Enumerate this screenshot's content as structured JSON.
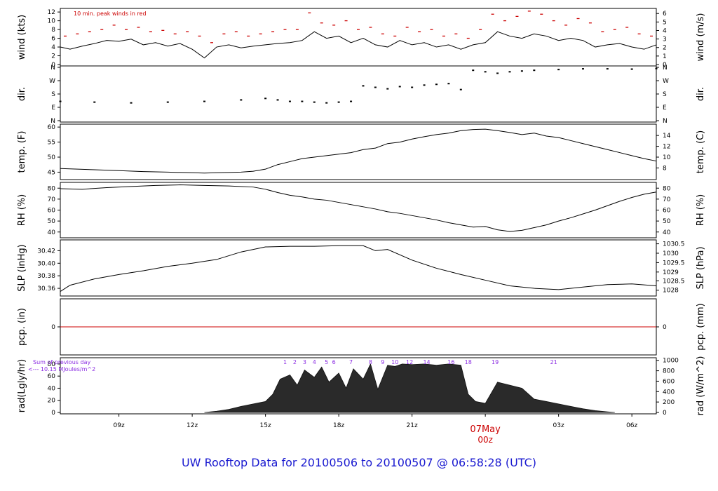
{
  "footer": {
    "title": "UW Rooftop Data for 20100506  to  20100507 @ 06:58:28  (UTC)"
  },
  "colors": {
    "axis": "#000000",
    "line": "#000000",
    "peak": "#cc0000",
    "precip": "#cc0000",
    "annot": "#8a2be2",
    "date": "#cc0000",
    "title": "#1a1ad0"
  },
  "chart_data": {
    "type": "line",
    "x_axis": {
      "unit": "hours UTC since 2010-05-06 06:00",
      "range": [
        6.6,
        31.0
      ],
      "ticks": [
        {
          "x": 9,
          "label": "09z"
        },
        {
          "x": 12,
          "label": "12z"
        },
        {
          "x": 15,
          "label": "15z"
        },
        {
          "x": 18,
          "label": "18z"
        },
        {
          "x": 21,
          "label": "21z"
        },
        {
          "x": 24,
          "label": "00z"
        },
        {
          "x": 27,
          "label": "03z"
        },
        {
          "x": 30,
          "label": "06z"
        }
      ],
      "date_label": "07May"
    },
    "panels": [
      {
        "id": "wind",
        "ylabel_left": "wind (kts)",
        "ylabel_right": "wind (m/s)",
        "ylim": [
          0,
          12.5
        ],
        "yticks_left": [
          "0",
          "2",
          "4",
          "6",
          "8",
          "10",
          "12"
        ],
        "yticks_left_values": [
          0,
          2,
          4,
          6,
          8,
          10,
          12
        ],
        "yticks_right": [
          "0",
          "1",
          "2",
          "3",
          "4",
          "5",
          "6"
        ],
        "yticks_right_values": [
          0,
          1.944,
          3.888,
          5.832,
          7.776,
          9.72,
          11.664
        ],
        "annotation": "10 min. peak winds in red",
        "series": [
          {
            "x": [
              6.6,
              7.0,
              7.5,
              8.0,
              8.5,
              9.0,
              9.5,
              10.0,
              10.5,
              11.0,
              11.5,
              12.0,
              12.5,
              13.0,
              13.5,
              14.0,
              14.5,
              15.0,
              15.5,
              16.0,
              16.5,
              17.0,
              17.5,
              18.0,
              18.5,
              19.0,
              19.5,
              20.0,
              20.5,
              21.0,
              21.5,
              22.0,
              22.5,
              23.0,
              23.5,
              24.0,
              24.5,
              25.0,
              25.5,
              26.0,
              26.5,
              27.0,
              27.5,
              28.0,
              28.5,
              29.0,
              29.5,
              30.0,
              30.5,
              31.0
            ],
            "y": [
              4.0,
              3.5,
              4.2,
              4.8,
              5.5,
              5.3,
              5.8,
              4.5,
              5.0,
              4.2,
              4.8,
              3.5,
              1.5,
              4.0,
              4.5,
              3.8,
              4.2,
              4.5,
              4.8,
              5.0,
              5.5,
              7.5,
              6.0,
              6.5,
              5.0,
              6.0,
              4.5,
              4.0,
              5.5,
              4.5,
              5.0,
              4.0,
              4.5,
              3.5,
              4.5,
              5.0,
              7.5,
              6.5,
              6.0,
              7.0,
              6.5,
              5.5,
              6.0,
              5.5,
              4.0,
              4.5,
              4.8,
              4.0,
              3.5,
              4.5
            ]
          },
          {
            "name": "10 min. peak winds in red",
            "x": [
              6.8,
              7.3,
              7.8,
              8.3,
              8.8,
              9.3,
              9.8,
              10.3,
              10.8,
              11.3,
              11.8,
              12.3,
              12.8,
              13.3,
              13.8,
              14.3,
              14.8,
              15.3,
              15.8,
              16.3,
              16.8,
              17.3,
              17.8,
              18.3,
              18.8,
              19.3,
              19.8,
              20.3,
              20.8,
              21.3,
              21.8,
              22.3,
              22.8,
              23.3,
              23.8,
              24.3,
              24.8,
              25.3,
              25.8,
              26.3,
              26.8,
              27.3,
              27.8,
              28.3,
              28.8,
              29.3,
              29.8,
              30.3,
              30.8
            ],
            "y": [
              6.5,
              7.0,
              7.5,
              8.0,
              9.0,
              8.0,
              8.5,
              7.5,
              7.8,
              7.0,
              7.5,
              6.5,
              5.0,
              7.0,
              7.5,
              6.5,
              7.0,
              7.5,
              8.0,
              8.0,
              11.8,
              9.5,
              9.0,
              10.0,
              8.0,
              8.5,
              7.0,
              6.5,
              8.5,
              7.5,
              8.0,
              6.5,
              7.0,
              6.0,
              8.0,
              11.5,
              10.0,
              11.0,
              12.2,
              11.5,
              10.0,
              9.0,
              10.5,
              9.5,
              7.5,
              8.0,
              8.5,
              7.0,
              6.5
            ]
          }
        ]
      },
      {
        "id": "dir",
        "ylabel_left": "dir.",
        "ylabel_right": "dir.",
        "ylim": [
          0,
          360
        ],
        "yticks_left": [
          "N",
          "E",
          "S",
          "W",
          "N"
        ],
        "yticks_left_values": [
          0,
          90,
          180,
          270,
          360
        ],
        "yticks_right": [
          "N",
          "E",
          "S",
          "W",
          "N"
        ],
        "yticks_right_values": [
          0,
          90,
          180,
          270,
          360
        ],
        "series": [
          {
            "x": [
              6.6,
              8.0,
              9.5,
              11.0,
              12.5,
              14.0,
              15.0,
              15.5,
              16.0,
              16.5,
              17.0,
              17.5,
              18.0,
              18.5,
              19.0,
              19.5,
              20.0,
              20.5,
              21.0,
              21.5,
              22.0,
              22.5,
              23.0,
              23.5,
              24.0,
              24.5,
              25.0,
              25.5,
              26.0,
              27.0,
              28.0,
              29.0,
              30.0,
              31.0
            ],
            "y": [
              130,
              125,
              120,
              125,
              130,
              140,
              150,
              140,
              130,
              130,
              125,
              120,
              125,
              130,
              235,
              225,
              215,
              230,
              225,
              240,
              245,
              250,
              210,
              340,
              330,
              320,
              330,
              335,
              340,
              345,
              350,
              350,
              348,
              352
            ]
          }
        ]
      },
      {
        "id": "temp",
        "ylabel_left": "temp. (F)",
        "ylabel_right": "temp. (C)",
        "ylim": [
          43,
          60.5
        ],
        "yticks_left": [
          "45",
          "50",
          "55",
          "60"
        ],
        "yticks_left_values": [
          45,
          50,
          55,
          60
        ],
        "yticks_right": [
          "8",
          "10",
          "12",
          "14"
        ],
        "yticks_right_values": [
          46.4,
          50,
          53.6,
          57.2
        ],
        "series": [
          {
            "x": [
              6.6,
              8.0,
              9.0,
              10.0,
              11.0,
              12.0,
              12.5,
              13.0,
              13.5,
              14.0,
              14.5,
              15.0,
              15.5,
              16.0,
              16.5,
              17.0,
              17.5,
              18.0,
              18.5,
              19.0,
              19.5,
              20.0,
              20.5,
              21.0,
              21.5,
              22.0,
              22.5,
              23.0,
              23.5,
              24.0,
              24.5,
              25.0,
              25.5,
              26.0,
              26.5,
              27.0,
              27.5,
              28.0,
              28.5,
              29.0,
              29.5,
              30.0,
              30.5,
              31.0
            ],
            "y": [
              46.2,
              45.8,
              45.5,
              45.2,
              45.0,
              44.8,
              44.7,
              44.8,
              44.9,
              45.0,
              45.3,
              46.0,
              47.5,
              48.5,
              49.5,
              50.0,
              50.5,
              51.0,
              51.5,
              52.5,
              53.0,
              54.5,
              55.0,
              56.0,
              56.8,
              57.5,
              58.0,
              58.8,
              59.2,
              59.3,
              58.8,
              58.2,
              57.5,
              58.0,
              57.0,
              56.5,
              55.5,
              54.5,
              53.5,
              52.5,
              51.5,
              50.5,
              49.5,
              48.7
            ]
          }
        ]
      },
      {
        "id": "rh",
        "ylabel_left": "RH (%)",
        "ylabel_right": "RH (%)",
        "ylim": [
          36,
          84
        ],
        "yticks_left": [
          "40",
          "50",
          "60",
          "70",
          "80"
        ],
        "yticks_left_values": [
          40,
          50,
          60,
          70,
          80
        ],
        "yticks_right": [
          "40",
          "50",
          "60",
          "70",
          "80"
        ],
        "yticks_right_values": [
          40,
          50,
          60,
          70,
          80
        ],
        "series": [
          {
            "x": [
              6.6,
              7.5,
              8.5,
              9.5,
              10.5,
              11.5,
              12.5,
              13.5,
              14.5,
              15.0,
              15.5,
              16.0,
              16.5,
              17.0,
              17.5,
              18.0,
              18.5,
              19.0,
              19.5,
              20.0,
              20.5,
              21.0,
              21.5,
              22.0,
              22.5,
              23.0,
              23.5,
              24.0,
              24.5,
              25.0,
              25.5,
              26.0,
              26.5,
              27.0,
              27.5,
              28.0,
              28.5,
              29.0,
              29.5,
              30.0,
              30.5,
              31.0
            ],
            "y": [
              79.5,
              79.0,
              80.5,
              81.5,
              82.5,
              83.0,
              82.5,
              82.0,
              81.0,
              79.0,
              76.0,
              73.5,
              72.0,
              70.0,
              69.0,
              67.0,
              65.0,
              63.0,
              61.0,
              58.5,
              57.0,
              55.0,
              53.0,
              51.0,
              48.5,
              46.5,
              44.5,
              45.0,
              42.0,
              40.5,
              41.5,
              44.0,
              46.5,
              50.0,
              53.0,
              56.5,
              60.0,
              64.0,
              68.0,
              71.5,
              74.5,
              76.5
            ]
          }
        ]
      },
      {
        "id": "slp",
        "ylabel_left": "SLP (inHg)",
        "ylabel_right": "SLP (hPa)",
        "ylim": [
          30.35,
          30.435
        ],
        "yticks_left": [
          "30.36",
          "30.38",
          "30.40",
          "30.42"
        ],
        "yticks_left_values": [
          30.36,
          30.38,
          30.4,
          30.42
        ],
        "yticks_right": [
          "1028",
          "1028.5",
          "1029",
          "1029.5",
          "1030",
          "1030.5"
        ],
        "yticks_right_values": [
          30.357,
          30.372,
          30.386,
          30.401,
          30.416,
          30.431
        ],
        "series": [
          {
            "x": [
              6.6,
              7.0,
              8.0,
              9.0,
              10.0,
              11.0,
              12.0,
              13.0,
              14.0,
              15.0,
              16.0,
              17.0,
              18.0,
              19.0,
              19.5,
              20.0,
              21.0,
              22.0,
              23.0,
              24.0,
              25.0,
              26.0,
              27.0,
              28.0,
              29.0,
              30.0,
              31.0
            ],
            "y": [
              30.355,
              30.365,
              30.375,
              30.382,
              30.388,
              30.395,
              30.4,
              30.406,
              30.418,
              30.426,
              30.427,
              30.427,
              30.428,
              30.428,
              30.42,
              30.422,
              30.405,
              30.392,
              30.382,
              30.373,
              30.364,
              30.36,
              30.358,
              30.362,
              30.366,
              30.367,
              30.364
            ]
          }
        ]
      },
      {
        "id": "pcp",
        "ylabel_left": "pcp. (in)",
        "ylabel_right": "pcp. (mm)",
        "ylim": [
          -1,
          1
        ],
        "yticks_left": [
          "0"
        ],
        "yticks_left_values": [
          0
        ],
        "yticks_right": [
          "0"
        ],
        "yticks_right_values": [
          0
        ],
        "series": [
          {
            "x": [
              6.6,
              31.0
            ],
            "y": [
              0,
              0
            ]
          }
        ]
      },
      {
        "id": "rad",
        "ylabel_left": "rad(Lgly/hr)",
        "ylabel_right": "rad (W/m^2)",
        "ylim": [
          0,
          88
        ],
        "yticks_left": [
          "0",
          "20",
          "40",
          "60",
          "80"
        ],
        "yticks_left_values": [
          0,
          20,
          40,
          60,
          80
        ],
        "yticks_right": [
          "0",
          "200",
          "400",
          "600",
          "800",
          "1000"
        ],
        "yticks_right_values": [
          0,
          17.2,
          34.4,
          51.6,
          68.8,
          86.0
        ],
        "annotation_lines": [
          "Sum of previous day",
          "<--- 10.15 MJoules/m^2"
        ],
        "hour_labels": [
          {
            "x": 15.8,
            "label": "1"
          },
          {
            "x": 16.2,
            "label": "2"
          },
          {
            "x": 16.6,
            "label": "3"
          },
          {
            "x": 17.0,
            "label": "4"
          },
          {
            "x": 17.5,
            "label": "5"
          },
          {
            "x": 17.8,
            "label": "6"
          },
          {
            "x": 18.5,
            "label": "7"
          },
          {
            "x": 19.3,
            "label": "8"
          },
          {
            "x": 19.8,
            "label": "9"
          },
          {
            "x": 20.3,
            "label": "10"
          },
          {
            "x": 20.9,
            "label": "12"
          },
          {
            "x": 21.6,
            "label": "14"
          },
          {
            "x": 22.6,
            "label": "16"
          },
          {
            "x": 23.3,
            "label": "18"
          },
          {
            "x": 24.4,
            "label": "19"
          },
          {
            "x": 26.8,
            "label": "21"
          }
        ],
        "series": [
          {
            "x": [
              12.5,
              13.0,
              13.5,
              14.0,
              14.5,
              15.0,
              15.3,
              15.6,
              16.0,
              16.3,
              16.6,
              17.0,
              17.3,
              17.6,
              18.0,
              18.3,
              18.6,
              19.0,
              19.3,
              19.6,
              20.0,
              20.3,
              20.6,
              21.0,
              21.5,
              22.0,
              22.5,
              23.0,
              23.3,
              23.6,
              24.0,
              24.5,
              25.0,
              25.5,
              26.0,
              26.5,
              27.0,
              27.5,
              28.0,
              28.5,
              29.0,
              29.3
            ],
            "y": [
              0,
              2,
              5,
              10,
              14,
              18,
              30,
              55,
              62,
              45,
              70,
              58,
              75,
              50,
              65,
              40,
              72,
              55,
              80,
              38,
              78,
              76,
              80,
              79,
              80,
              78,
              80,
              78,
              30,
              18,
              15,
              50,
              45,
              40,
              22,
              18,
              14,
              10,
              6,
              3,
              1,
              0
            ]
          }
        ]
      }
    ]
  }
}
